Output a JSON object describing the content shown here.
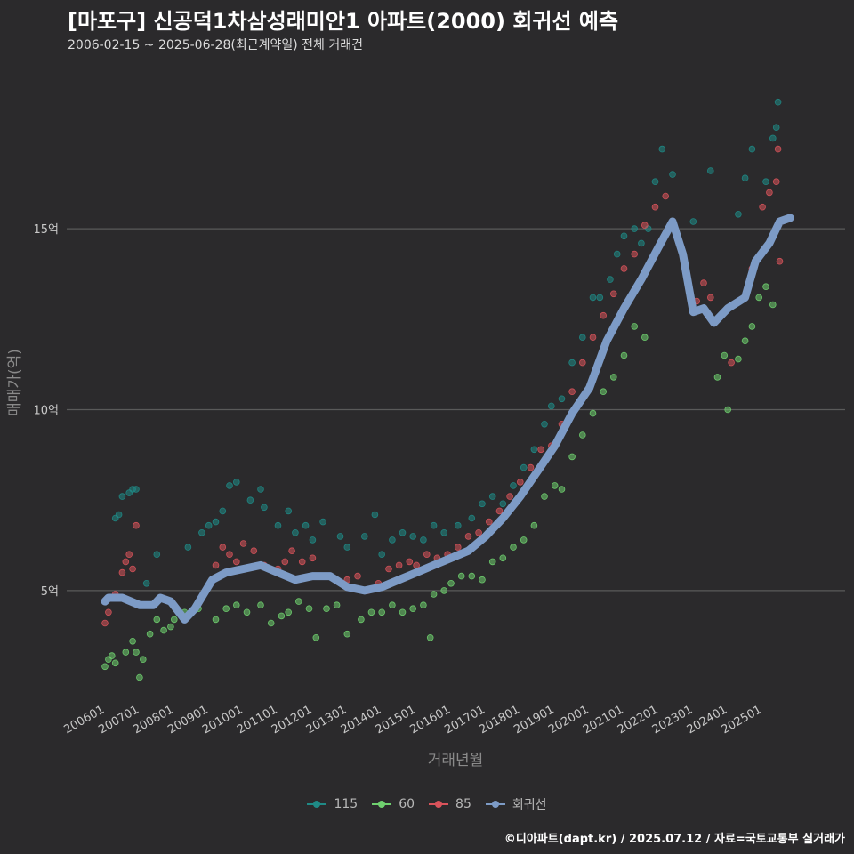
{
  "title": "[마포구] 신공덕1차삼성래미안1 아파트(2000) 회귀선 예측",
  "subtitle": "2006-02-15 ~ 2025-06-28(최근계약일) 전체 거래건",
  "caption": "©디아파트(dapt.kr) / 2025.07.12 / 자료=국토교통부 실거래가",
  "colors": {
    "background": "#2b2a2c",
    "grid": "#5a5a5a",
    "s115": "#1f8a86",
    "s60": "#6fd06f",
    "s85": "#d9535b",
    "regression": "#7d9bc6"
  },
  "chart_data": {
    "type": "scatter",
    "xlabel": "거래년월",
    "ylabel": "매매가(억)",
    "x_ticks": [
      "200601",
      "200701",
      "200801",
      "200901",
      "201001",
      "201101",
      "201201",
      "201301",
      "201401",
      "201501",
      "201601",
      "201701",
      "201801",
      "201901",
      "202001",
      "202101",
      "202201",
      "202301",
      "202401",
      "202501"
    ],
    "x_range": [
      "2006-01",
      "2025-10"
    ],
    "y_ticks": [
      "5억",
      "10억",
      "15억"
    ],
    "y_tick_values": [
      5,
      10,
      15
    ],
    "ylim": [
      1.9,
      19.6
    ],
    "grid": "horizontal",
    "legend_position": "bottom",
    "series": [
      {
        "name": "115",
        "color": "#1f8a86",
        "points": [
          [
            2006.3,
            7.0
          ],
          [
            2006.4,
            7.1
          ],
          [
            2006.5,
            7.6
          ],
          [
            2006.7,
            7.7
          ],
          [
            2006.8,
            7.8
          ],
          [
            2006.9,
            7.8
          ],
          [
            2007.2,
            5.2
          ],
          [
            2007.5,
            6.0
          ],
          [
            2008.4,
            6.2
          ],
          [
            2008.8,
            6.6
          ],
          [
            2009.0,
            6.8
          ],
          [
            2009.2,
            6.9
          ],
          [
            2009.4,
            7.2
          ],
          [
            2009.6,
            7.9
          ],
          [
            2009.8,
            8.0
          ],
          [
            2010.2,
            7.5
          ],
          [
            2010.5,
            7.8
          ],
          [
            2010.6,
            7.3
          ],
          [
            2011.0,
            6.8
          ],
          [
            2011.3,
            7.2
          ],
          [
            2011.5,
            6.6
          ],
          [
            2011.8,
            6.8
          ],
          [
            2012.0,
            6.4
          ],
          [
            2012.3,
            6.9
          ],
          [
            2012.8,
            6.5
          ],
          [
            2013.0,
            6.2
          ],
          [
            2013.5,
            6.5
          ],
          [
            2013.8,
            7.1
          ],
          [
            2014.0,
            6.0
          ],
          [
            2014.3,
            6.4
          ],
          [
            2014.6,
            6.6
          ],
          [
            2014.9,
            6.5
          ],
          [
            2015.2,
            6.4
          ],
          [
            2015.5,
            6.8
          ],
          [
            2015.8,
            6.6
          ],
          [
            2016.2,
            6.8
          ],
          [
            2016.6,
            7.0
          ],
          [
            2016.9,
            7.4
          ],
          [
            2017.2,
            7.6
          ],
          [
            2017.5,
            7.4
          ],
          [
            2017.8,
            7.9
          ],
          [
            2018.1,
            8.4
          ],
          [
            2018.4,
            8.9
          ],
          [
            2018.7,
            9.6
          ],
          [
            2018.9,
            10.1
          ],
          [
            2019.2,
            10.3
          ],
          [
            2019.5,
            11.3
          ],
          [
            2019.8,
            12.0
          ],
          [
            2020.1,
            13.1
          ],
          [
            2020.3,
            13.1
          ],
          [
            2020.6,
            13.6
          ],
          [
            2020.8,
            14.3
          ],
          [
            2021.0,
            14.8
          ],
          [
            2021.3,
            15.0
          ],
          [
            2021.5,
            14.6
          ],
          [
            2021.7,
            15.0
          ],
          [
            2021.9,
            16.3
          ],
          [
            2022.1,
            17.2
          ],
          [
            2022.4,
            16.5
          ],
          [
            2023.0,
            15.2
          ],
          [
            2023.5,
            16.6
          ],
          [
            2024.3,
            15.4
          ],
          [
            2024.5,
            16.4
          ],
          [
            2024.7,
            17.2
          ],
          [
            2025.1,
            16.3
          ],
          [
            2025.3,
            17.5
          ],
          [
            2025.4,
            17.8
          ],
          [
            2025.45,
            18.5
          ]
        ]
      },
      {
        "name": "60",
        "color": "#6fd06f",
        "points": [
          [
            2006.0,
            2.9
          ],
          [
            2006.1,
            3.1
          ],
          [
            2006.2,
            3.2
          ],
          [
            2006.3,
            3.0
          ],
          [
            2006.6,
            3.3
          ],
          [
            2006.8,
            3.6
          ],
          [
            2006.9,
            3.3
          ],
          [
            2007.0,
            2.6
          ],
          [
            2007.1,
            3.1
          ],
          [
            2007.3,
            3.8
          ],
          [
            2007.5,
            4.2
          ],
          [
            2007.7,
            3.9
          ],
          [
            2007.9,
            4.0
          ],
          [
            2008.0,
            4.2
          ],
          [
            2008.3,
            4.4
          ],
          [
            2008.7,
            4.5
          ],
          [
            2009.2,
            4.2
          ],
          [
            2009.5,
            4.5
          ],
          [
            2009.8,
            4.6
          ],
          [
            2010.1,
            4.4
          ],
          [
            2010.5,
            4.6
          ],
          [
            2010.8,
            4.1
          ],
          [
            2011.1,
            4.3
          ],
          [
            2011.3,
            4.4
          ],
          [
            2011.6,
            4.7
          ],
          [
            2011.9,
            4.5
          ],
          [
            2012.1,
            3.7
          ],
          [
            2012.4,
            4.5
          ],
          [
            2012.7,
            4.6
          ],
          [
            2013.0,
            3.8
          ],
          [
            2013.4,
            4.2
          ],
          [
            2013.7,
            4.4
          ],
          [
            2014.0,
            4.4
          ],
          [
            2014.3,
            4.6
          ],
          [
            2014.6,
            4.4
          ],
          [
            2014.9,
            4.5
          ],
          [
            2015.2,
            4.6
          ],
          [
            2015.4,
            3.7
          ],
          [
            2015.5,
            4.9
          ],
          [
            2015.8,
            5.0
          ],
          [
            2016.0,
            5.2
          ],
          [
            2016.3,
            5.4
          ],
          [
            2016.6,
            5.4
          ],
          [
            2016.9,
            5.3
          ],
          [
            2017.2,
            5.8
          ],
          [
            2017.5,
            5.9
          ],
          [
            2017.8,
            6.2
          ],
          [
            2018.1,
            6.4
          ],
          [
            2018.4,
            6.8
          ],
          [
            2018.7,
            7.6
          ],
          [
            2019.0,
            7.9
          ],
          [
            2019.2,
            7.8
          ],
          [
            2019.5,
            8.7
          ],
          [
            2019.8,
            9.3
          ],
          [
            2020.1,
            9.9
          ],
          [
            2020.4,
            10.5
          ],
          [
            2020.7,
            10.9
          ],
          [
            2021.0,
            11.5
          ],
          [
            2021.3,
            12.3
          ],
          [
            2021.6,
            12.0
          ],
          [
            2023.7,
            10.9
          ],
          [
            2023.9,
            11.5
          ],
          [
            2024.0,
            10.0
          ],
          [
            2024.3,
            11.4
          ],
          [
            2024.5,
            11.9
          ],
          [
            2024.7,
            12.3
          ],
          [
            2024.9,
            13.1
          ],
          [
            2025.1,
            13.4
          ],
          [
            2025.3,
            12.9
          ]
        ]
      },
      {
        "name": "85",
        "color": "#d9535b",
        "points": [
          [
            2006.0,
            4.1
          ],
          [
            2006.1,
            4.4
          ],
          [
            2006.3,
            4.9
          ],
          [
            2006.5,
            5.5
          ],
          [
            2006.6,
            5.8
          ],
          [
            2006.7,
            6.0
          ],
          [
            2006.8,
            5.6
          ],
          [
            2006.9,
            6.8
          ],
          [
            2007.2,
            4.6
          ],
          [
            2009.2,
            5.7
          ],
          [
            2009.4,
            6.2
          ],
          [
            2009.6,
            6.0
          ],
          [
            2009.8,
            5.8
          ],
          [
            2010.0,
            6.3
          ],
          [
            2010.3,
            6.1
          ],
          [
            2010.6,
            5.7
          ],
          [
            2011.0,
            5.6
          ],
          [
            2011.2,
            5.8
          ],
          [
            2011.4,
            6.1
          ],
          [
            2011.7,
            5.8
          ],
          [
            2012.0,
            5.9
          ],
          [
            2012.3,
            5.4
          ],
          [
            2013.0,
            5.3
          ],
          [
            2013.3,
            5.4
          ],
          [
            2013.6,
            5.0
          ],
          [
            2013.9,
            5.2
          ],
          [
            2014.2,
            5.6
          ],
          [
            2014.5,
            5.7
          ],
          [
            2014.8,
            5.8
          ],
          [
            2015.0,
            5.7
          ],
          [
            2015.3,
            6.0
          ],
          [
            2015.6,
            5.9
          ],
          [
            2015.9,
            6.0
          ],
          [
            2016.2,
            6.2
          ],
          [
            2016.5,
            6.5
          ],
          [
            2016.8,
            6.6
          ],
          [
            2017.1,
            6.9
          ],
          [
            2017.4,
            7.2
          ],
          [
            2017.7,
            7.6
          ],
          [
            2018.0,
            8.0
          ],
          [
            2018.3,
            8.4
          ],
          [
            2018.6,
            8.9
          ],
          [
            2018.9,
            9.0
          ],
          [
            2019.2,
            9.6
          ],
          [
            2019.5,
            10.5
          ],
          [
            2019.8,
            11.3
          ],
          [
            2020.1,
            12.0
          ],
          [
            2020.4,
            12.6
          ],
          [
            2020.7,
            13.2
          ],
          [
            2021.0,
            13.9
          ],
          [
            2021.3,
            14.3
          ],
          [
            2021.6,
            15.1
          ],
          [
            2021.9,
            15.6
          ],
          [
            2022.2,
            15.9
          ],
          [
            2023.1,
            13.0
          ],
          [
            2023.3,
            13.5
          ],
          [
            2023.5,
            13.1
          ],
          [
            2024.1,
            11.3
          ],
          [
            2024.3,
            13.0
          ],
          [
            2024.7,
            13.9
          ],
          [
            2025.0,
            15.6
          ],
          [
            2025.2,
            16.0
          ],
          [
            2025.4,
            16.3
          ],
          [
            2025.45,
            17.2
          ],
          [
            2025.5,
            14.1
          ]
        ]
      },
      {
        "name": "회귀선",
        "color": "#7d9bc6",
        "points": [
          [
            2006.0,
            4.7
          ],
          [
            2006.1,
            4.8
          ],
          [
            2006.5,
            4.8
          ],
          [
            2007.0,
            4.6
          ],
          [
            2007.4,
            4.6
          ],
          [
            2007.6,
            4.8
          ],
          [
            2007.9,
            4.7
          ],
          [
            2008.3,
            4.2
          ],
          [
            2008.6,
            4.5
          ],
          [
            2009.1,
            5.3
          ],
          [
            2009.5,
            5.5
          ],
          [
            2010.0,
            5.6
          ],
          [
            2010.5,
            5.7
          ],
          [
            2011.0,
            5.5
          ],
          [
            2011.5,
            5.3
          ],
          [
            2012.0,
            5.4
          ],
          [
            2012.5,
            5.4
          ],
          [
            2013.0,
            5.1
          ],
          [
            2013.5,
            5.0
          ],
          [
            2014.0,
            5.1
          ],
          [
            2014.5,
            5.3
          ],
          [
            2015.0,
            5.5
          ],
          [
            2015.5,
            5.7
          ],
          [
            2016.0,
            5.9
          ],
          [
            2016.5,
            6.1
          ],
          [
            2017.0,
            6.5
          ],
          [
            2017.5,
            7.0
          ],
          [
            2018.0,
            7.6
          ],
          [
            2018.5,
            8.3
          ],
          [
            2019.0,
            9.0
          ],
          [
            2019.5,
            9.9
          ],
          [
            2020.0,
            10.6
          ],
          [
            2020.5,
            11.9
          ],
          [
            2021.0,
            12.8
          ],
          [
            2021.5,
            13.6
          ],
          [
            2022.0,
            14.5
          ],
          [
            2022.4,
            15.2
          ],
          [
            2022.7,
            14.3
          ],
          [
            2023.0,
            12.7
          ],
          [
            2023.3,
            12.8
          ],
          [
            2023.6,
            12.4
          ],
          [
            2024.0,
            12.8
          ],
          [
            2024.5,
            13.1
          ],
          [
            2024.8,
            14.1
          ],
          [
            2025.2,
            14.6
          ],
          [
            2025.5,
            15.2
          ],
          [
            2025.8,
            15.3
          ]
        ]
      }
    ]
  }
}
